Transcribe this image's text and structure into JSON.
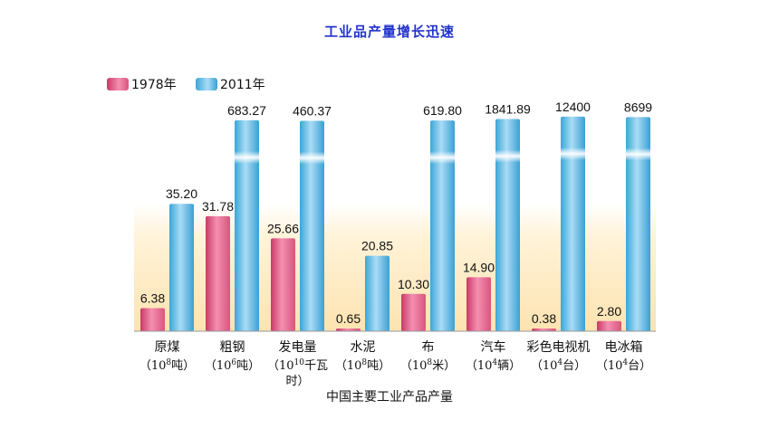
{
  "title": "工业品产量增长迅速",
  "colors": {
    "title": "#2233cc",
    "series_1978": "#e8688f",
    "series_2011": "#4fb6e6",
    "background_band": "#fde6b8"
  },
  "chart_data": {
    "type": "bar",
    "title": "工业品产量增长迅速",
    "xlabel": "中国主要工业产品产量",
    "ylabel": "",
    "axis_break": true,
    "legend_position": "top-left",
    "categories": [
      {
        "name": "原煤",
        "unit_base": "10",
        "unit_exp": "8",
        "unit_suffix": "吨"
      },
      {
        "name": "粗钢",
        "unit_base": "10",
        "unit_exp": "6",
        "unit_suffix": "吨"
      },
      {
        "name": "发电量",
        "unit_base": "10",
        "unit_exp": "10",
        "unit_suffix": "千瓦时"
      },
      {
        "name": "水泥",
        "unit_base": "10",
        "unit_exp": "8",
        "unit_suffix": "吨"
      },
      {
        "name": "布",
        "unit_base": "10",
        "unit_exp": "8",
        "unit_suffix": "米"
      },
      {
        "name": "汽车",
        "unit_base": "10",
        "unit_exp": "4",
        "unit_suffix": "辆"
      },
      {
        "name": "彩色电视机",
        "unit_base": "10",
        "unit_exp": "4",
        "unit_suffix": "台"
      },
      {
        "name": "电冰箱",
        "unit_base": "10",
        "unit_exp": "4",
        "unit_suffix": "台"
      }
    ],
    "series": [
      {
        "name": "1978年",
        "values": [
          6.38,
          31.78,
          25.66,
          0.65,
          10.3,
          14.9,
          0.38,
          2.8
        ],
        "labels": [
          "6.38",
          "31.78",
          "25.66",
          "0.65",
          "10.30",
          "14.90",
          "0.38",
          "2.80"
        ]
      },
      {
        "name": "2011年",
        "values": [
          35.2,
          683.27,
          460.37,
          20.85,
          619.8,
          1841.89,
          12400,
          8699
        ],
        "labels": [
          "35.20",
          "683.27",
          "460.37",
          "20.85",
          "619.80",
          "1841.89",
          "12400",
          "8699"
        ]
      }
    ]
  }
}
